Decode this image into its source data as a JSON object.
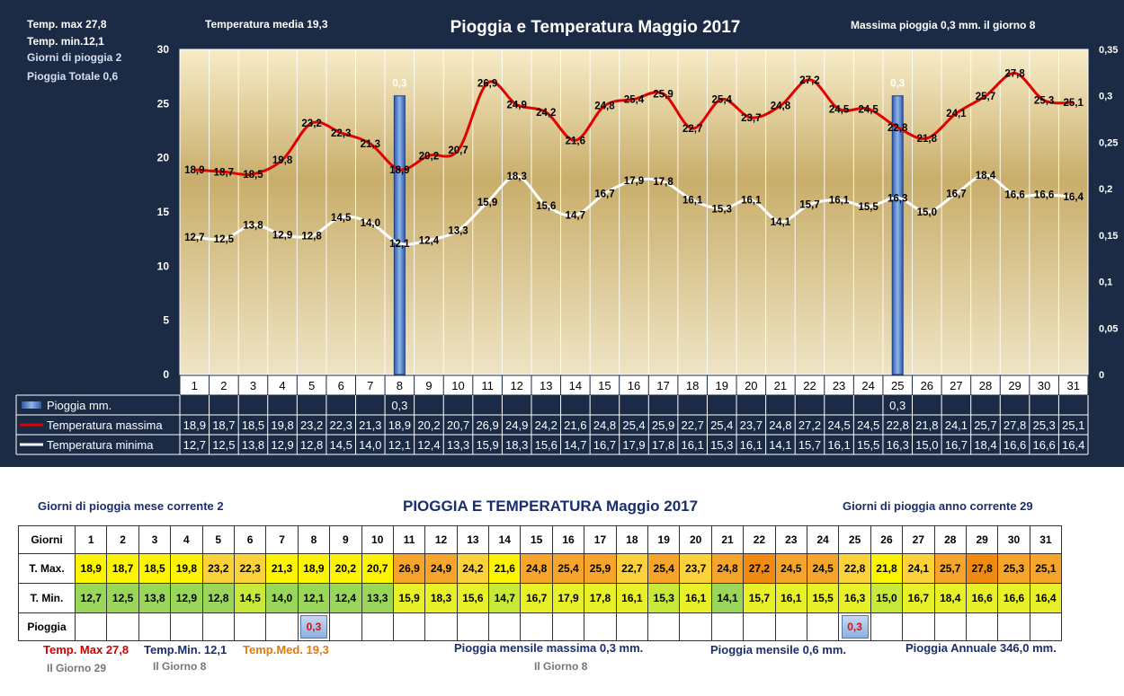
{
  "header": {
    "title": "Pioggia e Temperatura Maggio 2017",
    "temp_max": "Temp. max  27,8",
    "temp_min": "Temp.  min.12,1",
    "giorni_pioggia": "Giorni  di pioggia   2",
    "pioggia_totale": "Pioggia Totale   0,6",
    "temperatura_media": "Temperatura media  19,3",
    "massima_pioggia": "Massima pioggia  0,3    mm.  il giorno   8"
  },
  "legend": {
    "rain": "Pioggia mm.",
    "tmax": "Temperatura massima",
    "tmin": "Temperatura minima"
  },
  "colors": {
    "panel": "#1b2a45",
    "tmax": "#e00000",
    "tmin": "#ffffff",
    "rain": "#4a7cc8"
  },
  "chart_data": {
    "type": "line",
    "title": "Pioggia e Temperatura Maggio 2017",
    "categories": [
      "1",
      "2",
      "3",
      "4",
      "5",
      "6",
      "7",
      "8",
      "9",
      "10",
      "11",
      "12",
      "13",
      "14",
      "15",
      "16",
      "17",
      "18",
      "19",
      "20",
      "21",
      "22",
      "23",
      "24",
      "25",
      "26",
      "27",
      "28",
      "29",
      "30",
      "31"
    ],
    "y_left": {
      "min": 0,
      "max": 30,
      "ticks": [
        "0",
        "5",
        "10",
        "15",
        "20",
        "25",
        "30"
      ]
    },
    "y_right": {
      "min": 0,
      "max": 0.35,
      "ticks": [
        "0",
        "0,05",
        "0,1",
        "0,15",
        "0,2",
        "0,25",
        "0,3",
        "0,35"
      ]
    },
    "series": [
      {
        "name": "Temperatura massima",
        "axis": "left",
        "values": [
          18.9,
          18.7,
          18.5,
          19.8,
          23.2,
          22.3,
          21.3,
          18.9,
          20.2,
          20.7,
          26.9,
          24.9,
          24.2,
          21.6,
          24.8,
          25.4,
          25.9,
          22.7,
          25.4,
          23.7,
          24.8,
          27.2,
          24.5,
          24.5,
          22.8,
          21.8,
          24.1,
          25.7,
          27.8,
          25.3,
          25.1
        ],
        "labels": [
          "18,9",
          "18,7",
          "18,5",
          "19,8",
          "23,2",
          "22,3",
          "21,3",
          "18,9",
          "20,2",
          "20,7",
          "26,9",
          "24,9",
          "24,2",
          "21,6",
          "24,8",
          "25,4",
          "25,9",
          "22,7",
          "25,4",
          "23,7",
          "24,8",
          "27,2",
          "24,5",
          "24,5",
          "22,8",
          "21,8",
          "24,1",
          "25,7",
          "27,8",
          "25,3",
          "25,1"
        ]
      },
      {
        "name": "Temperatura minima",
        "axis": "left",
        "values": [
          12.7,
          12.5,
          13.8,
          12.9,
          12.8,
          14.5,
          14.0,
          12.1,
          12.4,
          13.3,
          15.9,
          18.3,
          15.6,
          14.7,
          16.7,
          17.9,
          17.8,
          16.1,
          15.3,
          16.1,
          14.1,
          15.7,
          16.1,
          15.5,
          16.3,
          15.0,
          16.7,
          18.4,
          16.6,
          16.6,
          16.4
        ],
        "labels": [
          "12,7",
          "12,5",
          "13,8",
          "12,9",
          "12,8",
          "14,5",
          "14,0",
          "12,1",
          "12,4",
          "13,3",
          "15,9",
          "18,3",
          "15,6",
          "14,7",
          "16,7",
          "17,9",
          "17,8",
          "16,1",
          "15,3",
          "16,1",
          "14,1",
          "15,7",
          "16,1",
          "15,5",
          "16,3",
          "15,0",
          "16,7",
          "18,4",
          "16,6",
          "16,6",
          "16,4"
        ]
      },
      {
        "name": "Pioggia mm.",
        "axis": "right",
        "type": "bar",
        "values": [
          0,
          0,
          0,
          0,
          0,
          0,
          0,
          0.3,
          0,
          0,
          0,
          0,
          0,
          0,
          0,
          0,
          0,
          0,
          0,
          0,
          0,
          0,
          0,
          0,
          0.3,
          0,
          0,
          0,
          0,
          0,
          0
        ],
        "labels": [
          "",
          "",
          "",
          "",
          "",
          "",
          "",
          "0,3",
          "",
          "",
          "",
          "",
          "",
          "",
          "",
          "",
          "",
          "",
          "",
          "",
          "",
          "",
          "",
          "",
          "0,3",
          "",
          "",
          "",
          "",
          "",
          ""
        ]
      }
    ]
  },
  "bottom": {
    "title": "PIOGGIA E TEMPERATURA Maggio 2017",
    "giorni_mese": "Giorni di pioggia mese corrente   2",
    "giorni_anno": "Giorni di pioggia anno corrente  29",
    "row_labels": {
      "days": "Giorni",
      "tmax": "T. Max.",
      "tmin": "T. Min.",
      "rain": "Pioggia"
    },
    "stat_tmax": "Temp. Max 27,8",
    "stat_tmax_day": "Il Giorno  29",
    "stat_tmin": "Temp.Min.  12,1",
    "stat_tmin_day": "Il Giorno  8",
    "stat_tmed": "Temp.Med. 19,3",
    "rain_max": "Pioggia mensile massima  0,3 mm.",
    "rain_max_day": "Il Giorno  8",
    "rain_month": "Pioggia mensile  0,6    mm.",
    "rain_year": "Pioggia Annuale  346,0 mm."
  }
}
